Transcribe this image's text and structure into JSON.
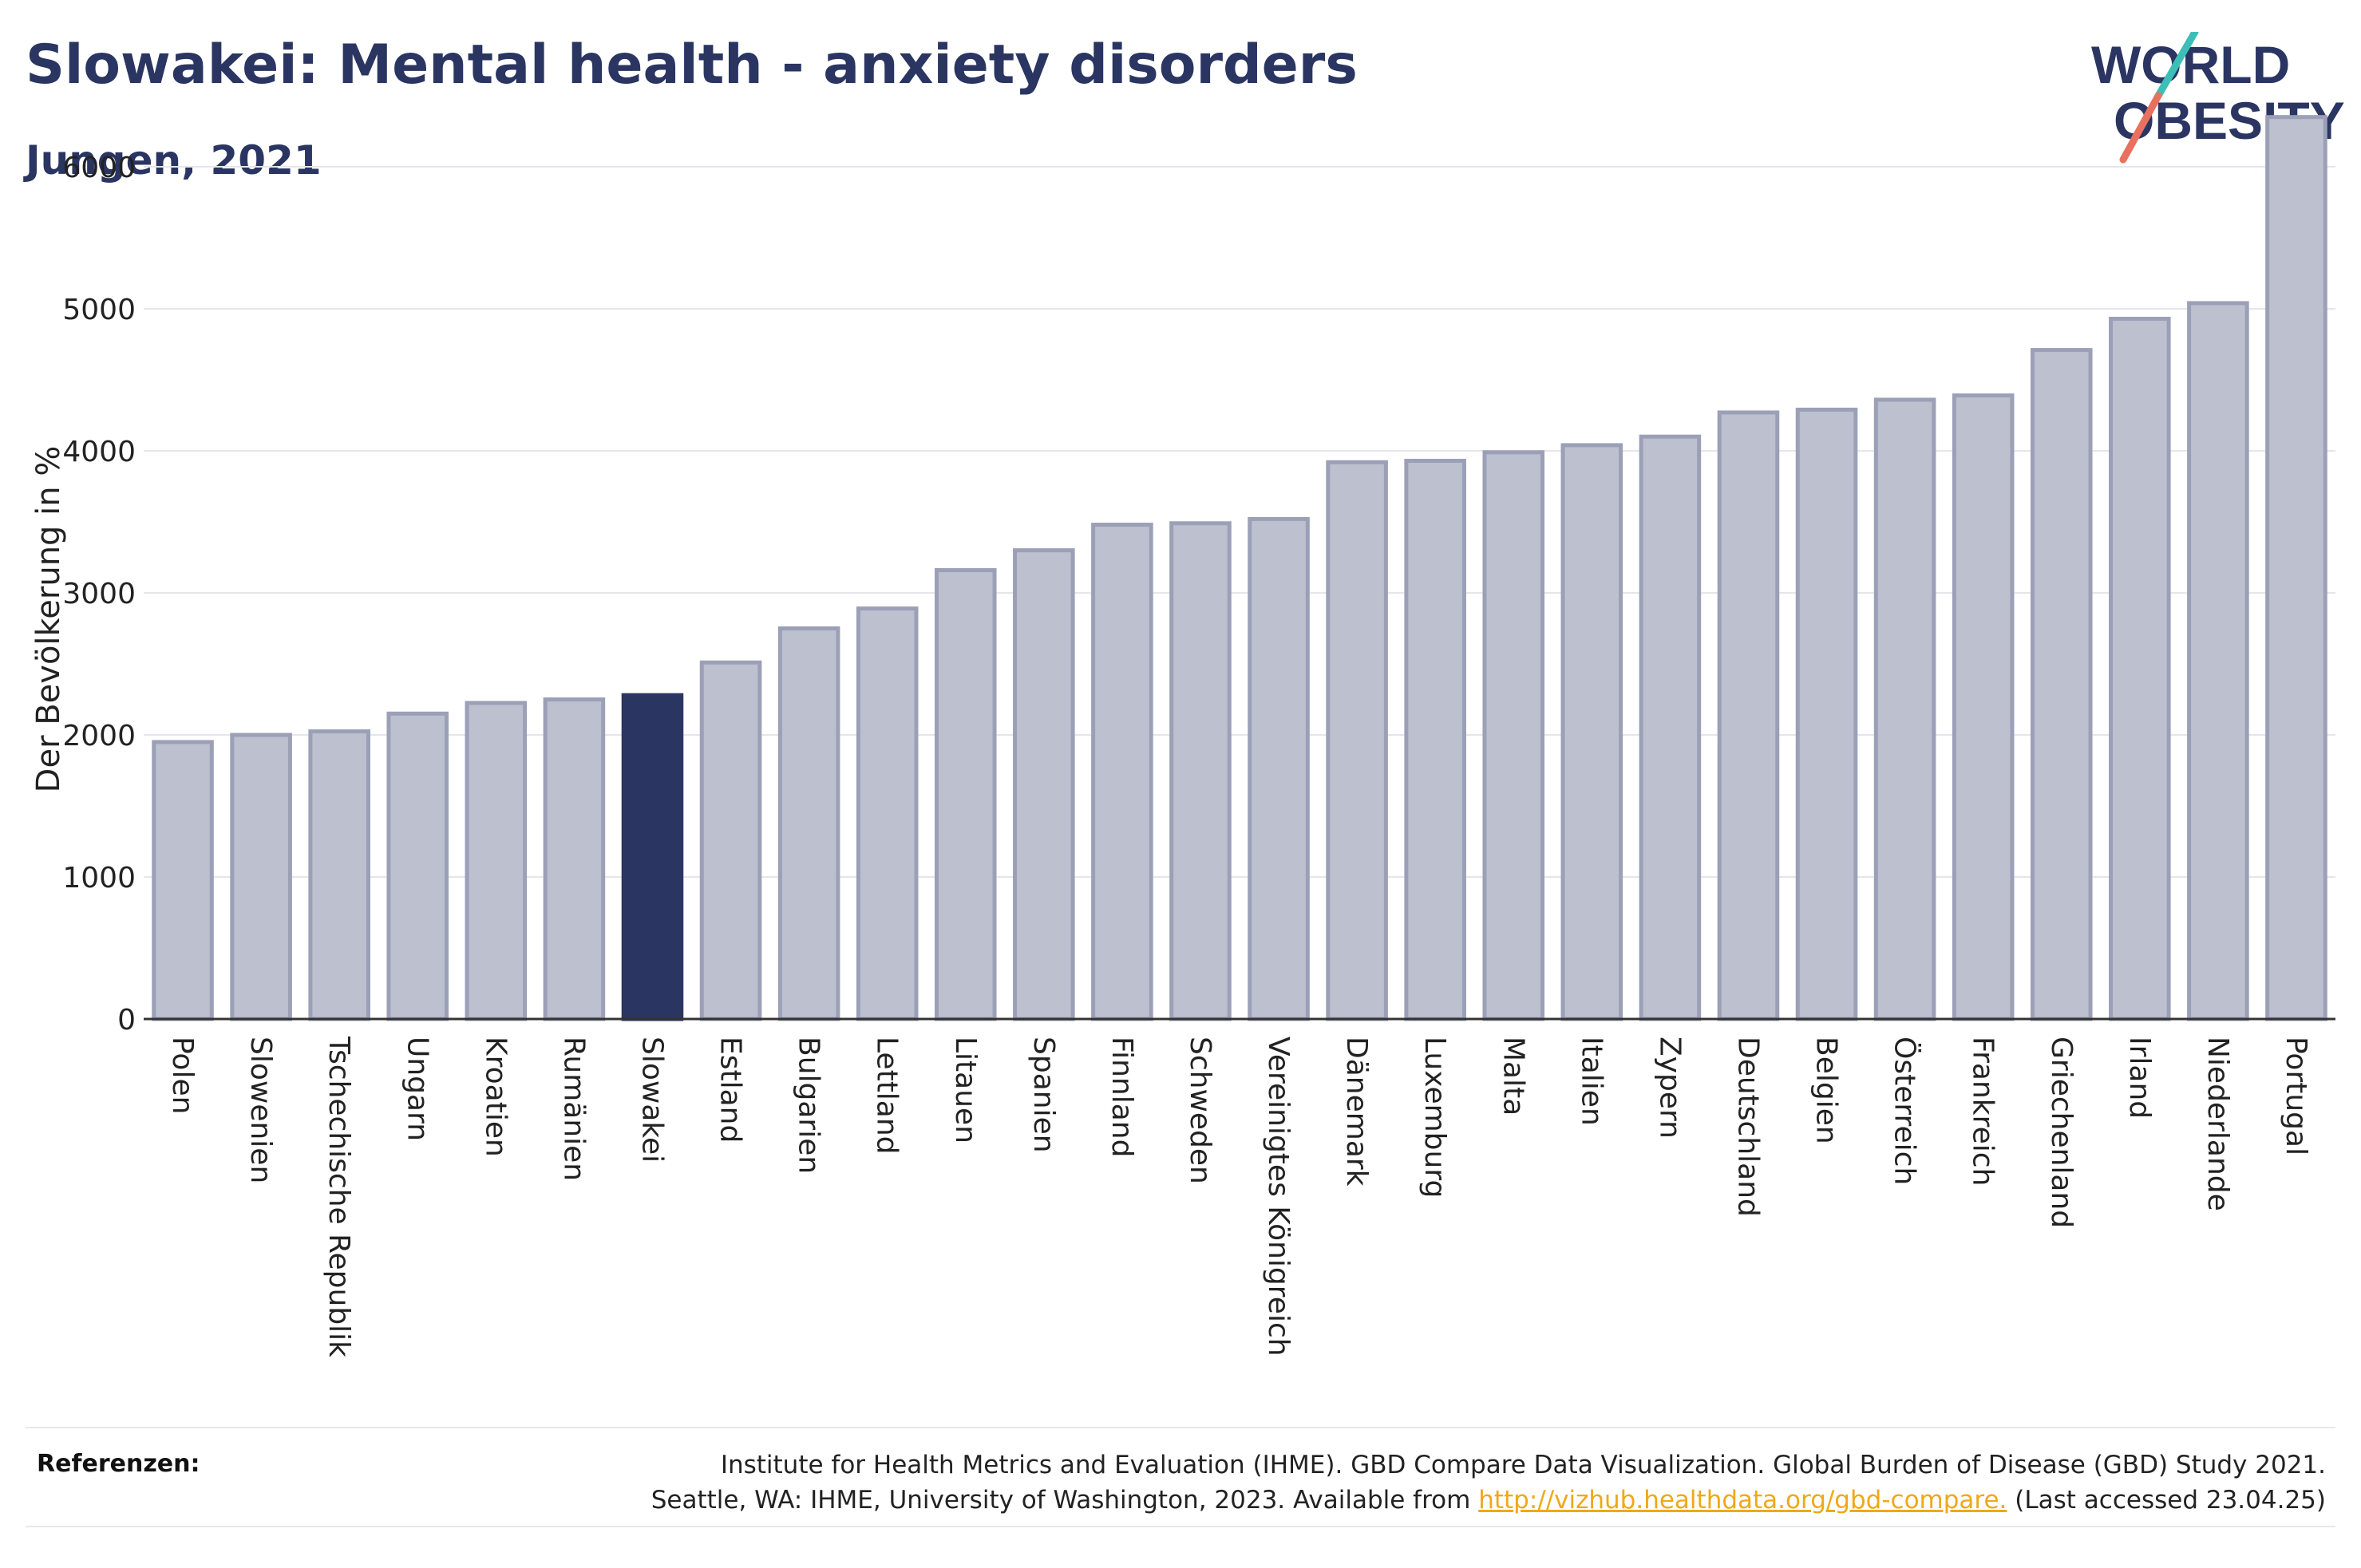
{
  "title": "Slowakei: Mental health - anxiety disorders",
  "subtitle": "Jungen, 2021",
  "logo": {
    "line1": "WORLD",
    "line2": "OBESITY"
  },
  "colors": {
    "bar": "#bcc0cf",
    "bar_edge": "#9ba0b7",
    "highlight": "#2a3562",
    "grid": "#e6e6ea",
    "axis": "#333333",
    "text": "#2a3562",
    "link": "#f0a818"
  },
  "chart_data": {
    "type": "bar",
    "ylabel": "Der Bevölkerung in %",
    "xlabel": "",
    "ylim": [
      0,
      6500
    ],
    "yticks": [
      0,
      1000,
      2000,
      3000,
      4000,
      5000,
      6000
    ],
    "grid": "horizontal",
    "highlight": "Slowakei",
    "categories": [
      "Polen",
      "Slowenien",
      "Tschechische Republik",
      "Ungarn",
      "Kroatien",
      "Rumänien",
      "Slowakei",
      "Estland",
      "Bulgarien",
      "Lettland",
      "Litauen",
      "Spanien",
      "Finnland",
      "Schweden",
      "Vereinigtes Königreich",
      "Dänemark",
      "Luxemburg",
      "Malta",
      "Italien",
      "Zypern",
      "Deutschland",
      "Belgien",
      "Österreich",
      "Frankreich",
      "Griechenland",
      "Irland",
      "Niederlande",
      "Portugal"
    ],
    "values": [
      1950,
      2000,
      2025,
      2150,
      2225,
      2250,
      2280,
      2510,
      2750,
      2890,
      3160,
      3300,
      3480,
      3490,
      3520,
      3920,
      3930,
      3990,
      4040,
      4100,
      4270,
      4290,
      4360,
      4390,
      4710,
      4930,
      5040,
      6350
    ]
  },
  "footer": {
    "label": "Referenzen:",
    "line1": "Institute for Health Metrics and Evaluation (IHME). GBD Compare Data Visualization. Global Burden of Disease (GBD) Study 2021.",
    "line2_prefix": "Seattle, WA: IHME, University of Washington, 2023. Available from ",
    "link": "http://vizhub.healthdata.org/gbd-compare.",
    "line2_suffix": " (Last accessed 23.04.25)"
  }
}
